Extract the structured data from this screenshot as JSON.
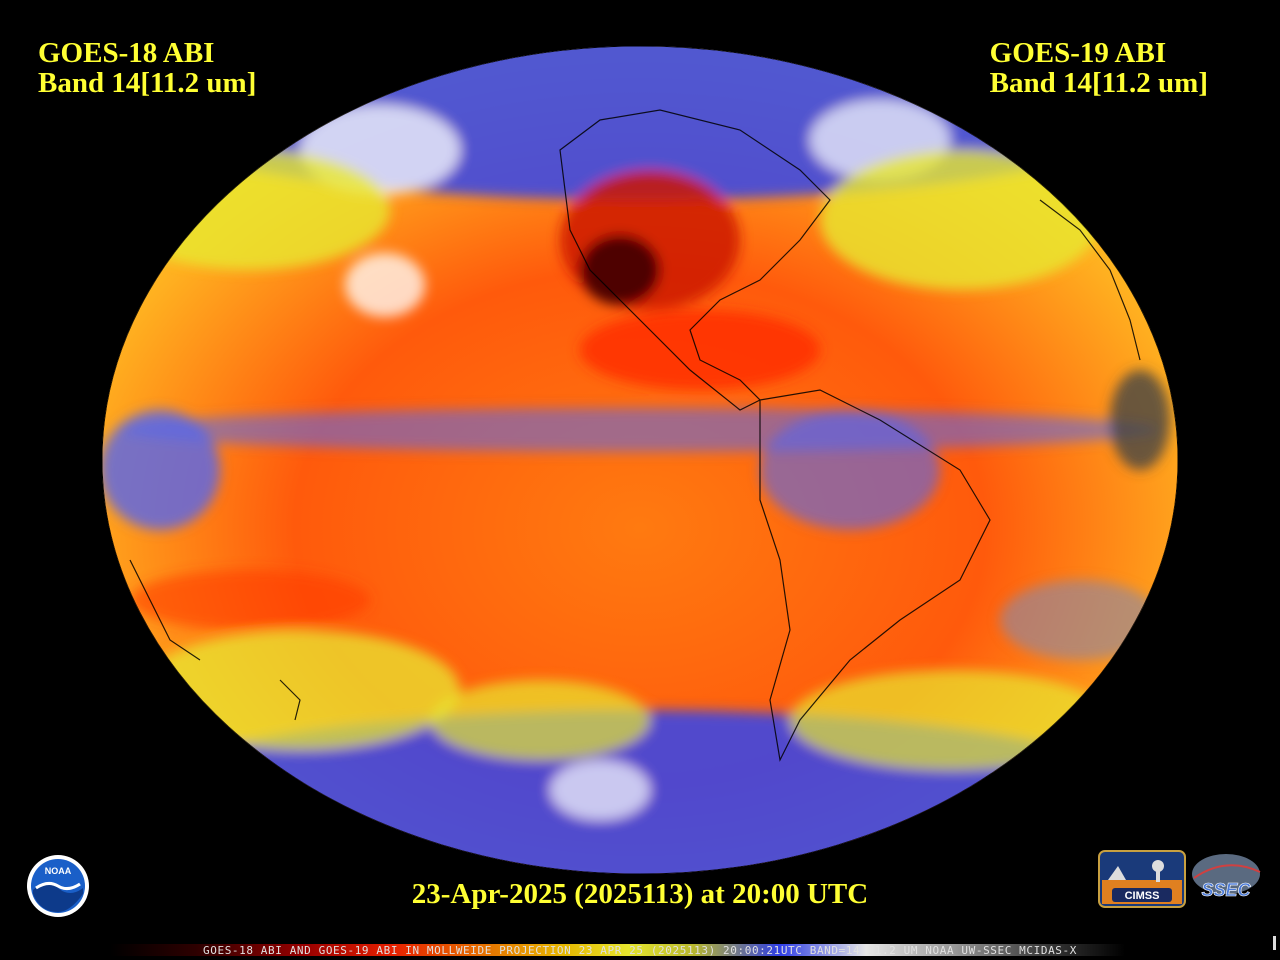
{
  "header": {
    "left_satellite": "GOES-18 ABI",
    "left_band": "Band 14[11.2 um]",
    "right_satellite": "GOES-19 ABI",
    "right_band": "Band 14[11.2 um]"
  },
  "date_line": "23-Apr-2025 (2025113) at 20:00 UTC",
  "footer": "GOES-18 ABI AND GOES-19 ABI IN MOLLWEIDE PROJECTION 23 APR 25 (2025113) 20:00:21UTC BAND=14 11.2 UM NOAA UW-SSEC MCIDAS-X",
  "logos": {
    "noaa": "NOAA",
    "cimss": "CIMSS",
    "ssec": "SSEC"
  },
  "colors": {
    "label_yellow": "#ffff33",
    "ocean_orange": "#ff7a10",
    "ocean_red": "#ff3a0a",
    "cloud_blue": "#3344ee",
    "cloud_yellow": "#f2ee30"
  }
}
